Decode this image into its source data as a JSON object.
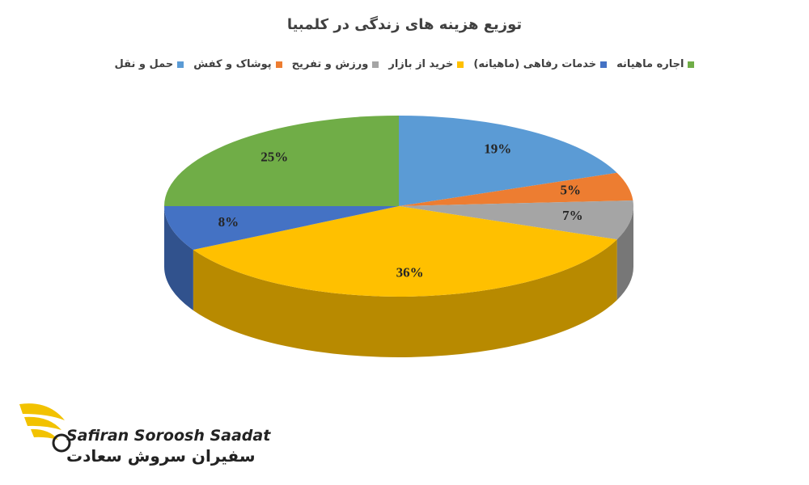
{
  "chart_data": {
    "type": "pie",
    "title": "توزیع هزینه های زندگی در کلمبیا",
    "categories": [
      "حمل و نقل",
      "پوشاک و کفش",
      "ورزش و تفریح",
      "خرید از بازار",
      "خدمات رفاهی (ماهیانه)",
      "اجاره ماهیانه"
    ],
    "values": [
      19,
      5,
      7,
      36,
      8,
      25
    ],
    "value_labels": [
      "19%",
      "5%",
      "7%",
      "36%",
      "8%",
      "25%"
    ],
    "colors": [
      "#5b9bd5",
      "#ed7d31",
      "#a5a5a5",
      "#ffc000",
      "#4472c4",
      "#70ad47"
    ],
    "legend": "top"
  },
  "logo": {
    "name_en": "Safiran Soroosh Saadat",
    "name_fa": "سفیران سروش سعادت"
  }
}
